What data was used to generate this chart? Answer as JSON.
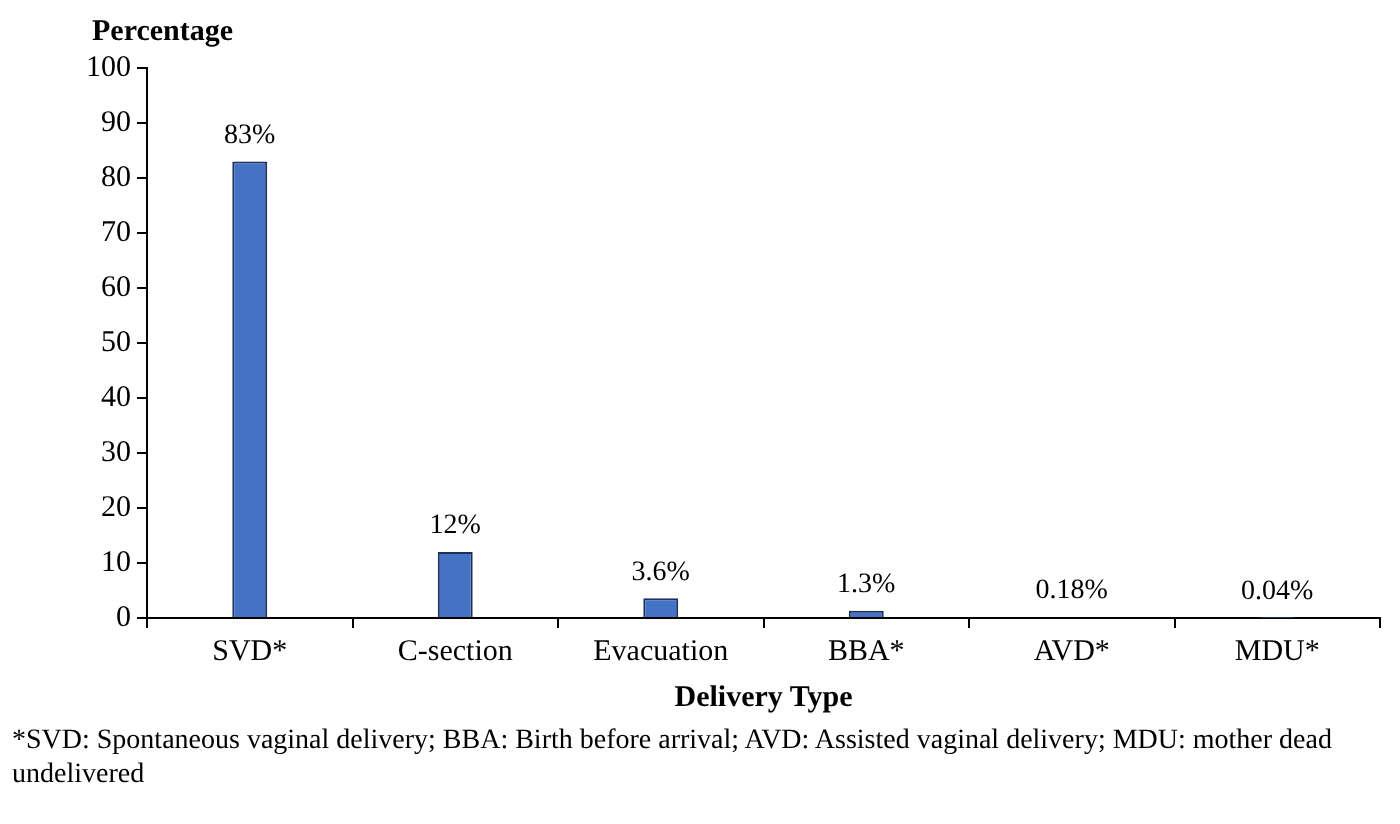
{
  "chart_data": {
    "type": "bar",
    "ylabel": "Percentage",
    "xlabel": "Delivery Type",
    "categories": [
      "SVD*",
      "C-section",
      "Evacuation",
      "BBA*",
      "AVD*",
      "MDU*"
    ],
    "values": [
      83,
      12,
      3.6,
      1.3,
      0.18,
      0.04
    ],
    "value_labels": [
      "83%",
      "12%",
      "3.6%",
      "1.3%",
      "0.18%",
      "0.04%"
    ],
    "color": "#4472c4",
    "ylim": [
      0,
      100
    ],
    "yticks": [
      0,
      10,
      20,
      30,
      40,
      50,
      60,
      70,
      80,
      90,
      100
    ],
    "grid": false,
    "legend": false,
    "annotations": [
      "*SVD: Spontaneous vaginal delivery; BBA: Birth before arrival; AVD: Assisted vaginal delivery; MDU: mother dead undelivered"
    ]
  }
}
